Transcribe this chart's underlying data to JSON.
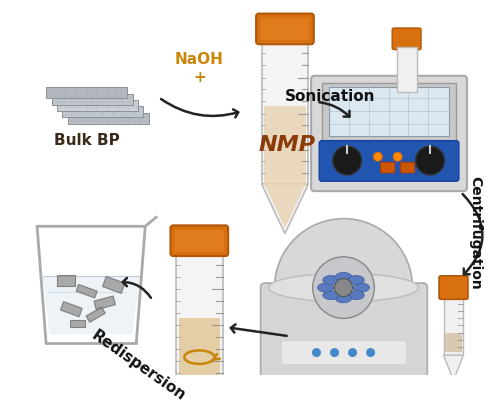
{
  "bg_color": "#ffffff",
  "labels": {
    "bulk_bp": "Bulk BP",
    "naoh": "NaOH\n+",
    "nmp": "NMP",
    "sonication": "Sonication",
    "centrifugation": "Centrifugation",
    "redispersion": "Redispersion"
  },
  "label_colors": {
    "bulk_bp": "#3a2a1a",
    "naoh": "#c8860a",
    "nmp": "#8b3a0a",
    "sonication": "#111111",
    "centrifugation": "#111111",
    "redispersion": "#111111"
  },
  "figsize": [
    5.0,
    4.13
  ],
  "dpi": 100
}
